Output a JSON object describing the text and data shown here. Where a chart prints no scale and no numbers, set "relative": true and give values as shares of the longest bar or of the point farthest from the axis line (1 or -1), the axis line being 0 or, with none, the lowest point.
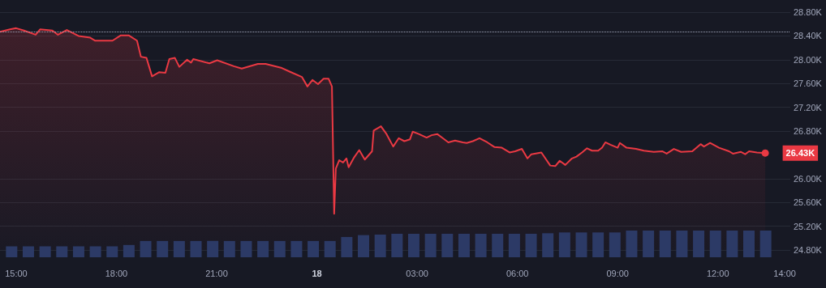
{
  "chart_data": [
    {
      "type": "area",
      "x": [
        "--08-17T14:31",
        "--08-17T14:49",
        "--08-17T15:00",
        "--08-17T15:14",
        "--08-17T15:35",
        "--08-17T15:43",
        "--08-17T16:05",
        "--08-17T16:15",
        "--08-17T16:31",
        "--08-17T16:52",
        "--08-17T17:13",
        "--08-17T17:22",
        "--08-17T17:39",
        "--08-17T17:53",
        "--08-17T18:08",
        "--08-17T18:22",
        "--08-17T18:37",
        "--08-17T18:44",
        "--08-17T18:54",
        "--08-17T19:04",
        "--08-17T19:17",
        "--08-17T19:28",
        "--08-17T19:35",
        "--08-17T19:45",
        "--08-17T19:53",
        "--08-17T20:07",
        "--08-17T20:14",
        "--08-17T20:18",
        "--08-17T20:47",
        "--08-17T21:01",
        "--08-17T21:31",
        "--08-17T21:45",
        "--08-17T22:14",
        "--08-17T22:28",
        "--08-17T22:57",
        "--08-17T23:11",
        "--08-17T23:33",
        "--08-17T23:43",
        "--08-17T23:52",
        "--08-18T00:02",
        "--08-18T00:12",
        "--08-18T00:21",
        "--08-18T00:27",
        "--08-18T00:31",
        "--08-18T00:34",
        "--08-18T00:40",
        "--08-18T00:47",
        "--08-18T00:53",
        "--08-18T00:57",
        "--08-18T01:07",
        "--08-18T01:16",
        "--08-18T01:26",
        "--08-18T01:39",
        "--08-18T01:42",
        "--08-18T01:55",
        "--08-18T02:05",
        "--08-18T02:17",
        "--08-18T02:27",
        "--08-18T02:37",
        "--08-18T02:47",
        "--08-18T02:52",
        "--08-18T03:03",
        "--08-18T03:17",
        "--08-18T03:26",
        "--08-18T03:36",
        "--08-18T03:46",
        "--08-18T03:56",
        "--08-18T04:08",
        "--08-18T04:22",
        "--08-18T04:29",
        "--08-18T04:40",
        "--08-18T04:52",
        "--08-18T05:06",
        "--08-18T05:19",
        "--08-18T05:32",
        "--08-18T05:46",
        "--08-18T05:56",
        "--08-18T06:08",
        "--08-18T06:18",
        "--08-18T06:25",
        "--08-18T06:43",
        "--08-18T06:59",
        "--08-18T07:08",
        "--08-18T07:16",
        "--08-18T07:26",
        "--08-18T07:38",
        "--08-18T07:46",
        "--08-18T07:56",
        "--08-18T08:05",
        "--08-18T08:14",
        "--08-18T08:25",
        "--08-18T08:32",
        "--08-18T08:38",
        "--08-18T08:47",
        "--08-18T09:00",
        "--08-18T09:04",
        "--08-18T09:16",
        "--08-18T09:33",
        "--08-18T09:47",
        "--08-18T10:05",
        "--08-18T10:20",
        "--08-18T10:28",
        "--08-18T10:41",
        "--08-18T10:54",
        "--08-18T11:14",
        "--08-18T11:29",
        "--08-18T11:35",
        "--08-18T11:46",
        "--08-18T12:02",
        "--08-18T12:20",
        "--08-18T12:27",
        "--08-18T12:41",
        "--08-18T12:49",
        "--08-18T12:56",
        "--08-18T13:10",
        "--08-18T13:25"
      ],
      "series": [
        {
          "color": "#ea3943",
          "values": [
            28470,
            28510,
            28530,
            28490,
            28420,
            28510,
            28490,
            28420,
            28500,
            28400,
            28370,
            28320,
            28320,
            28320,
            28410,
            28410,
            28320,
            28050,
            28030,
            27720,
            27790,
            27780,
            28010,
            28030,
            27880,
            28000,
            27950,
            28010,
            27940,
            27990,
            27890,
            27850,
            27930,
            27930,
            27860,
            27800,
            27710,
            27550,
            27660,
            27590,
            27680,
            27680,
            27550,
            25410,
            26170,
            26310,
            26270,
            26340,
            26190,
            26360,
            26480,
            26320,
            26460,
            26810,
            26880,
            26750,
            26540,
            26680,
            26630,
            26660,
            26790,
            26750,
            26690,
            26730,
            26750,
            26680,
            26610,
            26640,
            26610,
            26600,
            26630,
            26680,
            26610,
            26530,
            26520,
            26440,
            26460,
            26500,
            26340,
            26410,
            26440,
            26220,
            26210,
            26300,
            26230,
            26340,
            26370,
            26440,
            26510,
            26470,
            26470,
            26520,
            26610,
            26570,
            26520,
            26600,
            26520,
            26500,
            26470,
            26450,
            26460,
            26420,
            26500,
            26450,
            26460,
            26580,
            26540,
            26600,
            26520,
            26460,
            26420,
            26450,
            26410,
            26460,
            26440,
            26430
          ]
        }
      ],
      "xlim": [
        "--08-17T14:31",
        "--08-18T14:10"
      ],
      "xticks": [
        {
          "value": "--08-17T15:00",
          "label": "15:00"
        },
        {
          "value": "--08-17T18:00",
          "label": "18:00"
        },
        {
          "value": "--08-17T21:00",
          "label": "21:00"
        },
        {
          "value": "--08-18T00:00",
          "label": "18"
        },
        {
          "value": "--08-18T03:00",
          "label": "03:00"
        },
        {
          "value": "--08-18T06:00",
          "label": "06:00"
        },
        {
          "value": "--08-18T09:00",
          "label": "09:00"
        },
        {
          "value": "--08-18T12:00",
          "label": "12:00"
        },
        {
          "value": "--08-18T14:00",
          "label": "14:00"
        }
      ],
      "ylim": [
        24800,
        28800
      ],
      "yticks": [
        {
          "value": 24800,
          "label": "24.80K"
        },
        {
          "value": 25200,
          "label": "25.20K"
        },
        {
          "value": 25600,
          "label": "25.60K"
        },
        {
          "value": 26000,
          "label": "26.00K"
        },
        {
          "value": 26800,
          "label": "26.80K"
        },
        {
          "value": 27200,
          "label": "27.20K"
        },
        {
          "value": 27600,
          "label": "27.60K"
        },
        {
          "value": 28000,
          "label": "28.00K"
        },
        {
          "value": 28400,
          "label": "28.40K"
        },
        {
          "value": 28800,
          "label": "28.80K"
        }
      ],
      "ref_lines": [
        {
          "axis": "y",
          "value": 28470,
          "color": "#a1a7bb",
          "line_style": "dotted"
        }
      ],
      "annotations": [
        {
          "text": "26.43K",
          "x": "--08-18T13:25",
          "y": 26430
        }
      ],
      "grid": "y",
      "marker": "none",
      "line_style": "solid"
    },
    {
      "type": "bar",
      "relative": true,
      "categories": [
        null,
        null,
        null,
        null,
        null,
        null,
        null,
        null,
        null,
        null,
        null,
        null,
        null,
        null,
        null,
        null,
        null,
        null,
        null,
        null,
        null,
        null,
        null,
        null,
        null,
        null,
        null,
        null,
        null,
        null,
        null,
        null,
        null,
        null,
        null,
        null,
        null,
        null,
        null,
        null,
        null,
        null,
        null,
        null,
        null,
        null
      ],
      "series": [
        {
          "color": "#2c3a66",
          "values": [
            0.41,
            0.41,
            0.41,
            0.41,
            0.41,
            0.41,
            0.41,
            0.46,
            0.61,
            0.61,
            0.61,
            0.61,
            0.61,
            0.61,
            0.61,
            0.61,
            0.61,
            0.61,
            0.61,
            0.61,
            0.76,
            0.83,
            0.85,
            0.88,
            0.88,
            0.88,
            0.88,
            0.88,
            0.88,
            0.88,
            0.88,
            0.88,
            0.9,
            0.93,
            0.93,
            0.93,
            0.93,
            1,
            1,
            1,
            1,
            1,
            1,
            1,
            1,
            1
          ]
        }
      ]
    }
  ]
}
